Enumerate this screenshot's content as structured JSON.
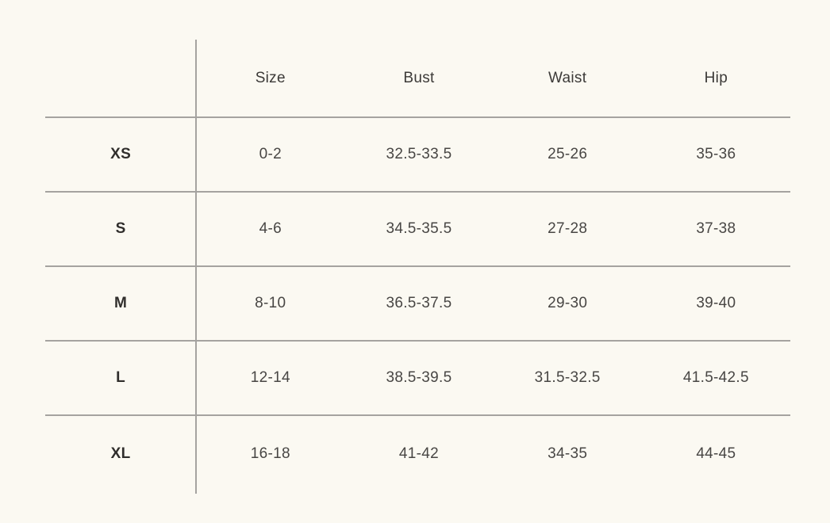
{
  "colors": {
    "background": "#fbf9f2",
    "rule_line": "#a5a3a0",
    "header_text": "#3c3a38",
    "cell_text": "#484644",
    "row_label_text": "#302e2c"
  },
  "table": {
    "columns": [
      "",
      "Size",
      "Bust",
      "Waist",
      "Hip"
    ],
    "rows": [
      {
        "label": "XS",
        "size": "0-2",
        "bust": "32.5-33.5",
        "waist": "25-26",
        "hip": "35-36"
      },
      {
        "label": "S",
        "size": "4-6",
        "bust": "34.5-35.5",
        "waist": "27-28",
        "hip": "37-38"
      },
      {
        "label": "M",
        "size": "8-10",
        "bust": "36.5-37.5",
        "waist": "29-30",
        "hip": "39-40"
      },
      {
        "label": "L",
        "size": "12-14",
        "bust": "38.5-39.5",
        "waist": "31.5-32.5",
        "hip": "41.5-42.5"
      },
      {
        "label": "XL",
        "size": "16-18",
        "bust": "41-42",
        "waist": "34-35",
        "hip": "44-45"
      }
    ]
  },
  "chart_data": {
    "type": "table",
    "title": "",
    "columns": [
      "",
      "Size",
      "Bust",
      "Waist",
      "Hip"
    ],
    "rows": [
      [
        "XS",
        "0-2",
        "32.5-33.5",
        "25-26",
        "35-36"
      ],
      [
        "S",
        "4-6",
        "34.5-35.5",
        "27-28",
        "37-38"
      ],
      [
        "M",
        "8-10",
        "36.5-37.5",
        "29-30",
        "39-40"
      ],
      [
        "L",
        "12-14",
        "38.5-39.5",
        "31.5-32.5",
        "41.5-42.5"
      ],
      [
        "XL",
        "16-18",
        "41-42",
        "34-35",
        "44-45"
      ]
    ],
    "layout_hints": {
      "grid": "horizontal rules between rows, single vertical rule after label column, no outer border, no rule below last row",
      "row_label_style": "bold",
      "alignment": "center"
    }
  }
}
